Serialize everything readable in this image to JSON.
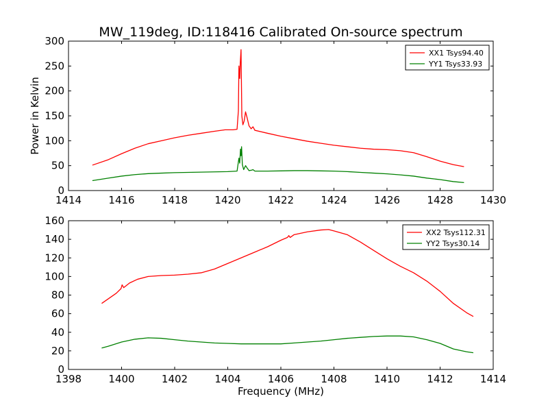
{
  "title": "MW_119deg, ID:118416 Calibrated On-source spectrum",
  "chart_data": [
    {
      "type": "line",
      "title": "MW_119deg, ID:118416 Calibrated On-source spectrum",
      "xlabel": "",
      "ylabel": "Power in Kelvin",
      "xlim": [
        1414,
        1430
      ],
      "ylim": [
        0,
        300
      ],
      "xticks": [
        1414,
        1416,
        1418,
        1420,
        1422,
        1424,
        1426,
        1428,
        1430
      ],
      "yticks": [
        0,
        50,
        100,
        150,
        200,
        250,
        300
      ],
      "grid": false,
      "legend_position": "top-right",
      "series": [
        {
          "name": "XX1 Tsys94.40",
          "color": "#ff0000",
          "points": [
            [
              1414.9,
              51
            ],
            [
              1415.5,
              62
            ],
            [
              1416,
              74
            ],
            [
              1416.5,
              85
            ],
            [
              1417,
              94
            ],
            [
              1417.5,
              100
            ],
            [
              1418,
              106
            ],
            [
              1418.5,
              111
            ],
            [
              1419,
              115
            ],
            [
              1419.5,
              119
            ],
            [
              1419.9,
              122
            ],
            [
              1420.2,
              122
            ],
            [
              1420.35,
              123
            ],
            [
              1420.4,
              160
            ],
            [
              1420.42,
              250
            ],
            [
              1420.45,
              225
            ],
            [
              1420.47,
              255
            ],
            [
              1420.5,
              283
            ],
            [
              1420.53,
              150
            ],
            [
              1420.57,
              132
            ],
            [
              1420.62,
              140
            ],
            [
              1420.67,
              158
            ],
            [
              1420.72,
              148
            ],
            [
              1420.8,
              130
            ],
            [
              1420.88,
              124
            ],
            [
              1420.95,
              128
            ],
            [
              1421.02,
              121
            ],
            [
              1421.5,
              115
            ],
            [
              1422,
              109
            ],
            [
              1422.5,
              104
            ],
            [
              1423,
              99
            ],
            [
              1423.5,
              95
            ],
            [
              1424,
              91
            ],
            [
              1424.5,
              88
            ],
            [
              1425,
              85
            ],
            [
              1425.5,
              83
            ],
            [
              1426,
              82
            ],
            [
              1426.5,
              80
            ],
            [
              1427,
              76
            ],
            [
              1427.5,
              68
            ],
            [
              1428,
              59
            ],
            [
              1428.5,
              52
            ],
            [
              1428.9,
              48
            ]
          ]
        },
        {
          "name": "YY1 Tsys33.93",
          "color": "#008000",
          "points": [
            [
              1414.9,
              20
            ],
            [
              1415.5,
              25
            ],
            [
              1416,
              29
            ],
            [
              1416.5,
              32
            ],
            [
              1417,
              34
            ],
            [
              1417.5,
              35
            ],
            [
              1418,
              36
            ],
            [
              1418.5,
              36.5
            ],
            [
              1419,
              37
            ],
            [
              1419.5,
              37.5
            ],
            [
              1420,
              38
            ],
            [
              1420.35,
              39
            ],
            [
              1420.42,
              65
            ],
            [
              1420.45,
              55
            ],
            [
              1420.48,
              83
            ],
            [
              1420.5,
              70
            ],
            [
              1420.52,
              88
            ],
            [
              1420.55,
              52
            ],
            [
              1420.6,
              42
            ],
            [
              1420.67,
              50
            ],
            [
              1420.72,
              46
            ],
            [
              1420.8,
              40
            ],
            [
              1420.9,
              41
            ],
            [
              1420.95,
              42
            ],
            [
              1421.02,
              39
            ],
            [
              1421.5,
              39
            ],
            [
              1422,
              39.5
            ],
            [
              1422.5,
              40
            ],
            [
              1423,
              40
            ],
            [
              1423.5,
              39.5
            ],
            [
              1424,
              39
            ],
            [
              1424.5,
              38
            ],
            [
              1425,
              36.5
            ],
            [
              1425.5,
              35
            ],
            [
              1426,
              33.5
            ],
            [
              1426.5,
              31.5
            ],
            [
              1427,
              29
            ],
            [
              1427.5,
              25
            ],
            [
              1428,
              22
            ],
            [
              1428.5,
              18
            ],
            [
              1428.9,
              16
            ]
          ]
        }
      ]
    },
    {
      "type": "line",
      "title": "",
      "xlabel": "Frequency (MHz)",
      "ylabel": "",
      "xlim": [
        1398,
        1414
      ],
      "ylim": [
        0,
        160
      ],
      "xticks": [
        1398,
        1400,
        1402,
        1404,
        1406,
        1408,
        1410,
        1412,
        1414
      ],
      "yticks": [
        0,
        20,
        40,
        60,
        80,
        100,
        120,
        140,
        160
      ],
      "grid": false,
      "legend_position": "top-right",
      "series": [
        {
          "name": "XX2 Tsys112.31",
          "color": "#ff0000",
          "points": [
            [
              1399.25,
              71
            ],
            [
              1399.5,
              76
            ],
            [
              1399.8,
              82
            ],
            [
              1399.98,
              87
            ],
            [
              1400.02,
              91
            ],
            [
              1400.08,
              88
            ],
            [
              1400.3,
              93
            ],
            [
              1400.6,
              97
            ],
            [
              1401,
              100
            ],
            [
              1401.5,
              101
            ],
            [
              1402,
              101.5
            ],
            [
              1402.5,
              102.5
            ],
            [
              1403,
              104
            ],
            [
              1403.5,
              108
            ],
            [
              1404,
              114
            ],
            [
              1404.5,
              120
            ],
            [
              1405,
              126
            ],
            [
              1405.5,
              132
            ],
            [
              1406,
              139
            ],
            [
              1406.25,
              142
            ],
            [
              1406.3,
              144
            ],
            [
              1406.35,
              142
            ],
            [
              1406.5,
              145
            ],
            [
              1407,
              148
            ],
            [
              1407.5,
              150
            ],
            [
              1407.8,
              150.5
            ],
            [
              1408,
              149
            ],
            [
              1408.5,
              145
            ],
            [
              1409,
              137
            ],
            [
              1409.5,
              128
            ],
            [
              1410,
              119
            ],
            [
              1410.5,
              111
            ],
            [
              1411,
              104
            ],
            [
              1411.5,
              95
            ],
            [
              1412,
              84
            ],
            [
              1412.5,
              71
            ],
            [
              1413,
              61
            ],
            [
              1413.25,
              57
            ]
          ]
        },
        {
          "name": "YY2 Tsys30.14",
          "color": "#008000",
          "points": [
            [
              1399.25,
              23
            ],
            [
              1399.5,
              25
            ],
            [
              1400,
              29.5
            ],
            [
              1400.5,
              32.5
            ],
            [
              1401,
              34
            ],
            [
              1401.5,
              33.5
            ],
            [
              1402,
              32
            ],
            [
              1402.5,
              30.5
            ],
            [
              1403,
              29.5
            ],
            [
              1403.5,
              28.5
            ],
            [
              1404,
              28
            ],
            [
              1404.5,
              27.5
            ],
            [
              1405,
              27.5
            ],
            [
              1405.5,
              27.5
            ],
            [
              1406,
              27.5
            ],
            [
              1406.5,
              28.5
            ],
            [
              1407,
              29.5
            ],
            [
              1407.5,
              30.5
            ],
            [
              1408,
              32
            ],
            [
              1408.5,
              33.5
            ],
            [
              1409,
              34.5
            ],
            [
              1409.5,
              35.5
            ],
            [
              1410,
              36
            ],
            [
              1410.5,
              36
            ],
            [
              1411,
              35
            ],
            [
              1411.5,
              32
            ],
            [
              1412,
              28
            ],
            [
              1412.5,
              22
            ],
            [
              1413,
              19
            ],
            [
              1413.25,
              18
            ]
          ]
        }
      ]
    }
  ]
}
